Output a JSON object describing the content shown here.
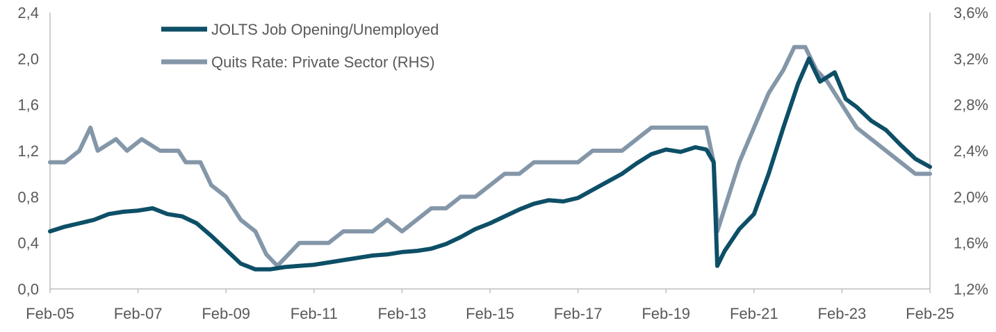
{
  "chart_data": {
    "type": "line",
    "title": "",
    "xlabel": "",
    "ylabel": "",
    "x_range": [
      "2005-02",
      "2025-02"
    ],
    "x_ticks": [
      "Feb-05",
      "Feb-07",
      "Feb-09",
      "Feb-11",
      "Feb-13",
      "Feb-15",
      "Feb-17",
      "Feb-19",
      "Feb-21",
      "Feb-23",
      "Feb-25"
    ],
    "y_left": {
      "range": [
        0,
        2.4
      ],
      "ticks": [
        "0,0",
        "0,4",
        "0,8",
        "1,2",
        "1,6",
        "2,0",
        "2,4"
      ],
      "tick_values": [
        0,
        0.4,
        0.8,
        1.2,
        1.6,
        2.0,
        2.4
      ]
    },
    "y_right": {
      "range": [
        1.2,
        3.6
      ],
      "ticks": [
        "1,2%",
        "1,6%",
        "2,0%",
        "2,4%",
        "2,8%",
        "3,2%",
        "3,6%"
      ],
      "tick_values": [
        1.2,
        1.6,
        2.0,
        2.4,
        2.8,
        3.2,
        3.6
      ]
    },
    "grid": false,
    "legend_position": "top-left",
    "series": [
      {
        "name": "JOLTS Job Opening/Unemployed",
        "axis": "left",
        "color": "#0d4f66",
        "points": [
          [
            "2005-02",
            0.5
          ],
          [
            "2005-06",
            0.54
          ],
          [
            "2005-10",
            0.57
          ],
          [
            "2006-02",
            0.6
          ],
          [
            "2006-06",
            0.65
          ],
          [
            "2006-10",
            0.67
          ],
          [
            "2007-02",
            0.68
          ],
          [
            "2007-06",
            0.7
          ],
          [
            "2007-10",
            0.65
          ],
          [
            "2008-02",
            0.63
          ],
          [
            "2008-06",
            0.57
          ],
          [
            "2008-10",
            0.46
          ],
          [
            "2009-02",
            0.34
          ],
          [
            "2009-06",
            0.22
          ],
          [
            "2009-10",
            0.17
          ],
          [
            "2010-02",
            0.17
          ],
          [
            "2010-06",
            0.19
          ],
          [
            "2010-10",
            0.2
          ],
          [
            "2011-02",
            0.21
          ],
          [
            "2011-06",
            0.23
          ],
          [
            "2011-10",
            0.25
          ],
          [
            "2012-02",
            0.27
          ],
          [
            "2012-06",
            0.29
          ],
          [
            "2012-10",
            0.3
          ],
          [
            "2013-02",
            0.32
          ],
          [
            "2013-06",
            0.33
          ],
          [
            "2013-10",
            0.35
          ],
          [
            "2014-02",
            0.39
          ],
          [
            "2014-06",
            0.45
          ],
          [
            "2014-10",
            0.52
          ],
          [
            "2015-02",
            0.57
          ],
          [
            "2015-06",
            0.63
          ],
          [
            "2015-10",
            0.69
          ],
          [
            "2016-02",
            0.74
          ],
          [
            "2016-06",
            0.77
          ],
          [
            "2016-10",
            0.76
          ],
          [
            "2017-02",
            0.79
          ],
          [
            "2017-06",
            0.86
          ],
          [
            "2017-10",
            0.93
          ],
          [
            "2018-02",
            1.0
          ],
          [
            "2018-06",
            1.09
          ],
          [
            "2018-10",
            1.17
          ],
          [
            "2019-02",
            1.21
          ],
          [
            "2019-06",
            1.19
          ],
          [
            "2019-10",
            1.23
          ],
          [
            "2020-01",
            1.21
          ],
          [
            "2020-03",
            1.1
          ],
          [
            "2020-04",
            0.2
          ],
          [
            "2020-06",
            0.33
          ],
          [
            "2020-10",
            0.52
          ],
          [
            "2021-02",
            0.65
          ],
          [
            "2021-06",
            1.0
          ],
          [
            "2021-10",
            1.4
          ],
          [
            "2022-02",
            1.78
          ],
          [
            "2022-05",
            2.0
          ],
          [
            "2022-08",
            1.8
          ],
          [
            "2022-12",
            1.88
          ],
          [
            "2023-03",
            1.65
          ],
          [
            "2023-06",
            1.58
          ],
          [
            "2023-10",
            1.46
          ],
          [
            "2024-02",
            1.38
          ],
          [
            "2024-06",
            1.25
          ],
          [
            "2024-10",
            1.13
          ],
          [
            "2025-02",
            1.06
          ]
        ]
      },
      {
        "name": "Quits Rate: Private Sector (RHS)",
        "axis": "right",
        "color": "#8497a9",
        "points": [
          [
            "2005-02",
            2.3
          ],
          [
            "2005-06",
            2.3
          ],
          [
            "2005-10",
            2.4
          ],
          [
            "2006-01",
            2.6
          ],
          [
            "2006-03",
            2.4
          ],
          [
            "2006-08",
            2.5
          ],
          [
            "2006-11",
            2.4
          ],
          [
            "2007-03",
            2.5
          ],
          [
            "2007-08",
            2.4
          ],
          [
            "2008-01",
            2.4
          ],
          [
            "2008-03",
            2.3
          ],
          [
            "2008-07",
            2.3
          ],
          [
            "2008-10",
            2.1
          ],
          [
            "2009-02",
            2.0
          ],
          [
            "2009-06",
            1.8
          ],
          [
            "2009-10",
            1.7
          ],
          [
            "2010-01",
            1.5
          ],
          [
            "2010-04",
            1.4
          ],
          [
            "2010-07",
            1.5
          ],
          [
            "2010-10",
            1.6
          ],
          [
            "2011-02",
            1.6
          ],
          [
            "2011-06",
            1.6
          ],
          [
            "2011-10",
            1.7
          ],
          [
            "2012-02",
            1.7
          ],
          [
            "2012-06",
            1.7
          ],
          [
            "2012-10",
            1.8
          ],
          [
            "2013-02",
            1.7
          ],
          [
            "2013-06",
            1.8
          ],
          [
            "2013-10",
            1.9
          ],
          [
            "2014-02",
            1.9
          ],
          [
            "2014-06",
            2.0
          ],
          [
            "2014-10",
            2.0
          ],
          [
            "2015-02",
            2.1
          ],
          [
            "2015-06",
            2.2
          ],
          [
            "2015-10",
            2.2
          ],
          [
            "2016-02",
            2.3
          ],
          [
            "2016-06",
            2.3
          ],
          [
            "2016-10",
            2.3
          ],
          [
            "2017-02",
            2.3
          ],
          [
            "2017-06",
            2.4
          ],
          [
            "2017-10",
            2.4
          ],
          [
            "2018-02",
            2.4
          ],
          [
            "2018-06",
            2.5
          ],
          [
            "2018-10",
            2.6
          ],
          [
            "2019-02",
            2.6
          ],
          [
            "2019-06",
            2.6
          ],
          [
            "2019-10",
            2.6
          ],
          [
            "2020-01",
            2.6
          ],
          [
            "2020-03",
            2.3
          ],
          [
            "2020-04",
            1.7
          ],
          [
            "2020-06",
            1.9
          ],
          [
            "2020-10",
            2.3
          ],
          [
            "2021-02",
            2.6
          ],
          [
            "2021-06",
            2.9
          ],
          [
            "2021-10",
            3.1
          ],
          [
            "2022-01",
            3.3
          ],
          [
            "2022-04",
            3.3
          ],
          [
            "2022-07",
            3.1
          ],
          [
            "2022-10",
            3.0
          ],
          [
            "2023-02",
            2.8
          ],
          [
            "2023-06",
            2.6
          ],
          [
            "2023-10",
            2.5
          ],
          [
            "2024-02",
            2.4
          ],
          [
            "2024-06",
            2.3
          ],
          [
            "2024-10",
            2.2
          ],
          [
            "2025-02",
            2.2
          ]
        ]
      }
    ]
  }
}
